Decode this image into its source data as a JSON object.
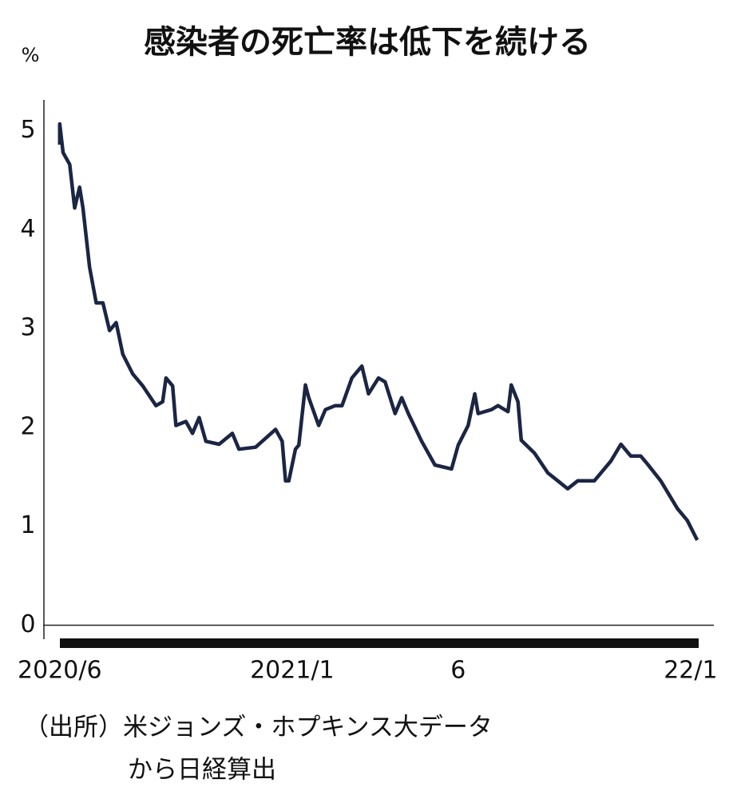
{
  "chart_data": {
    "type": "line",
    "title": "感染者の死亡率は低下を続ける",
    "y_unit": "%",
    "source": [
      "（出所）米ジョンズ・ホプキンス大データ",
      "から日経算出"
    ],
    "series": [
      {
        "color": "#1b2544",
        "x": [
          0,
          0.0,
          0.1,
          0.3,
          0.45,
          0.6,
          0.7,
          0.9,
          1.1,
          1.3,
          1.5,
          1.7,
          1.9,
          2.2,
          2.5,
          2.9,
          3.1,
          3.2,
          3.4,
          3.5,
          3.8,
          4.0,
          4.2,
          4.4,
          4.8,
          5.2,
          5.4,
          5.9,
          6.5,
          6.7,
          6.8,
          6.9,
          7.1,
          7.2,
          7.4,
          7.5,
          7.8,
          8.0,
          8.3,
          8.5,
          8.8,
          9.1,
          9.3,
          9.6,
          9.8,
          10.1,
          10.3,
          10.5,
          10.9,
          11.3,
          11.8,
          12.0,
          12.3,
          12.5,
          12.6,
          13.0,
          13.2,
          13.5,
          13.6,
          13.8,
          13.9,
          14.3,
          14.7,
          15.0,
          15.3,
          15.6,
          16.1,
          16.6,
          16.9,
          17.2,
          17.5,
          17.7,
          18.1,
          18.6,
          18.9,
          19.2
        ],
        "values": [
          4.86,
          5.07,
          4.78,
          4.66,
          4.22,
          4.43,
          4.22,
          3.62,
          3.26,
          3.26,
          2.98,
          3.06,
          2.74,
          2.54,
          2.42,
          2.22,
          2.26,
          2.5,
          2.42,
          2.02,
          2.06,
          1.94,
          2.1,
          1.86,
          1.83,
          1.94,
          1.78,
          1.8,
          1.98,
          1.86,
          1.46,
          1.46,
          1.78,
          1.82,
          2.43,
          2.3,
          2.02,
          2.18,
          2.22,
          2.22,
          2.5,
          2.62,
          2.34,
          2.5,
          2.46,
          2.14,
          2.3,
          2.14,
          1.86,
          1.62,
          1.58,
          1.82,
          2.02,
          2.34,
          2.14,
          2.18,
          2.22,
          2.16,
          2.43,
          2.26,
          1.87,
          1.74,
          1.54,
          1.46,
          1.38,
          1.46,
          1.46,
          1.66,
          1.83,
          1.71,
          1.71,
          1.63,
          1.46,
          1.18,
          1.06,
          0.86
        ]
      }
    ],
    "xlim": [
      -0.5,
      19.7
    ],
    "xticks": [
      {
        "value": 0,
        "label": "2020/6"
      },
      {
        "value": 7,
        "label": "2021/1"
      },
      {
        "value": 12,
        "label": "6"
      },
      {
        "value": 19,
        "label": "22/1"
      }
    ],
    "ylim": [
      -0.15,
      5.2
    ],
    "yticks": [
      0,
      1,
      2,
      3,
      4,
      5
    ],
    "grid": false
  }
}
